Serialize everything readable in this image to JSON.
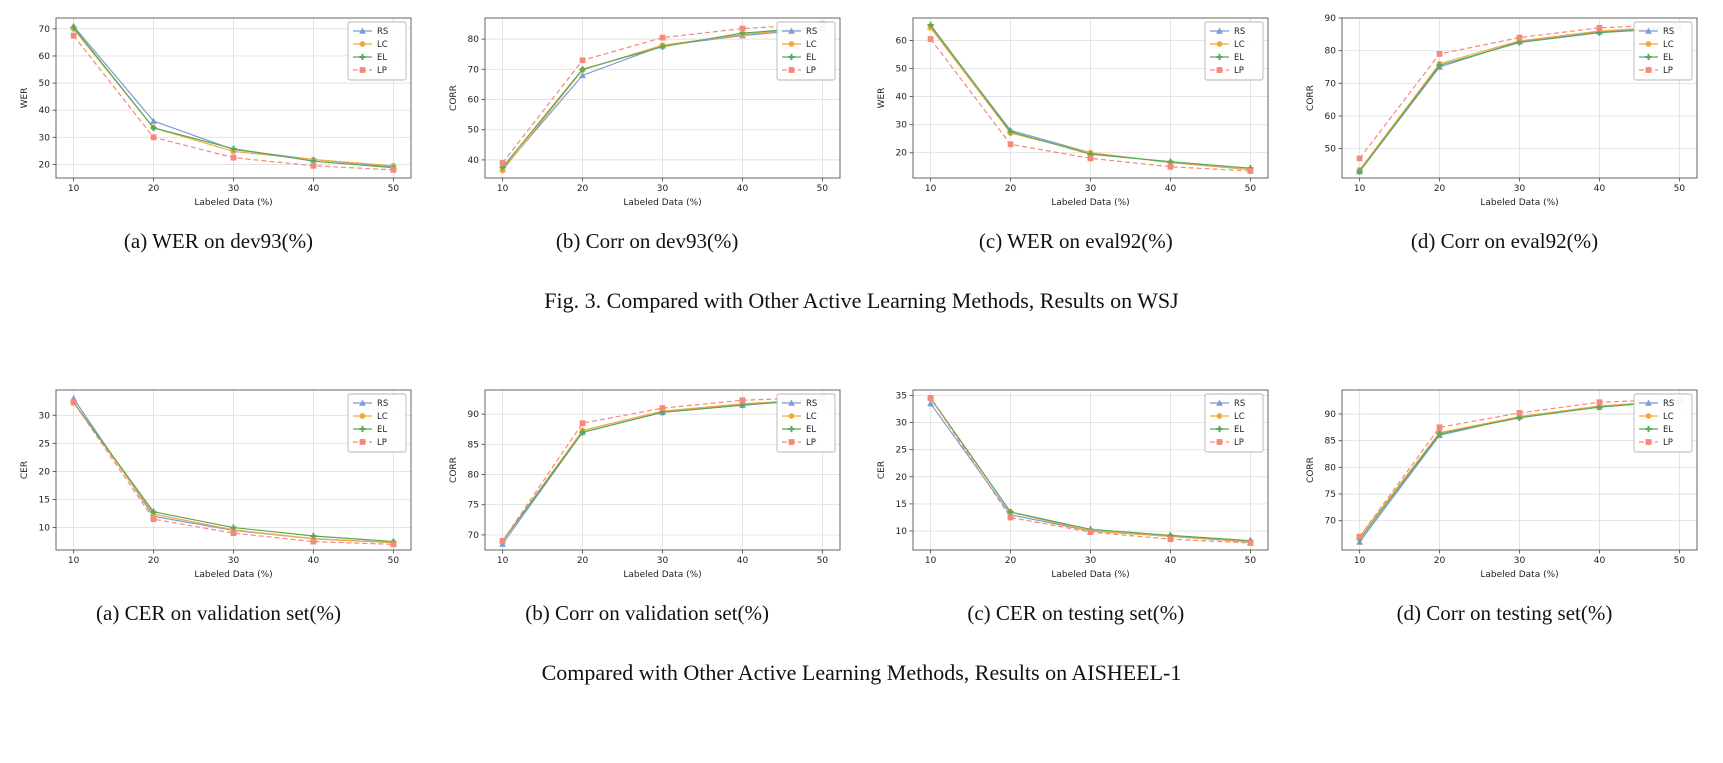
{
  "page": {
    "fig3_caption": "Fig. 3.   Compared with Other Active Learning Methods, Results on WSJ",
    "bottom_caption": "Compared with Other Active Learning Methods, Results on AISHEEL-1"
  },
  "legend": {
    "position": "top-right",
    "entries": [
      {
        "label": "RS",
        "color": "#7b9bd9",
        "marker": "triangle",
        "dashed": false
      },
      {
        "label": "LC",
        "color": "#f5a83a",
        "marker": "circle",
        "dashed": false
      },
      {
        "label": "EL",
        "color": "#58a85a",
        "marker": "plus",
        "dashed": false
      },
      {
        "label": "LP",
        "color": "#f5897a",
        "marker": "square",
        "dashed": true
      }
    ]
  },
  "chart_data": [
    {
      "type": "line",
      "caption": "(a) WER on dev93(%)",
      "xlabel": "Labeled Data (%)",
      "ylabel": "WER",
      "x": [
        10,
        20,
        30,
        40,
        50
      ],
      "xticks": [
        10,
        20,
        30,
        40,
        50
      ],
      "yticks": [
        20,
        30,
        40,
        50,
        60,
        70
      ],
      "ylim": [
        15,
        74
      ],
      "grid": true,
      "series": [
        {
          "name": "RS",
          "values": [
            71.0,
            36.0,
            25.5,
            21.8,
            19.2
          ]
        },
        {
          "name": "LC",
          "values": [
            70.0,
            33.5,
            24.8,
            21.8,
            19.5
          ]
        },
        {
          "name": "EL",
          "values": [
            70.5,
            33.5,
            25.8,
            21.2,
            18.8
          ]
        },
        {
          "name": "LP",
          "values": [
            67.5,
            30.0,
            22.5,
            19.5,
            18.0
          ]
        }
      ]
    },
    {
      "type": "line",
      "caption": "(b) Corr on dev93(%)",
      "xlabel": "Labeled Data (%)",
      "ylabel": "CORR",
      "x": [
        10,
        20,
        30,
        40,
        50
      ],
      "xticks": [
        10,
        20,
        30,
        40,
        50
      ],
      "yticks": [
        40,
        50,
        60,
        70,
        80
      ],
      "ylim": [
        34,
        87
      ],
      "grid": true,
      "series": [
        {
          "name": "RS",
          "values": [
            37.0,
            68.0,
            77.8,
            81.2,
            83.5
          ]
        },
        {
          "name": "LC",
          "values": [
            36.5,
            69.8,
            78.0,
            81.5,
            84.0
          ]
        },
        {
          "name": "EL",
          "values": [
            37.5,
            70.0,
            77.5,
            82.0,
            84.0
          ]
        },
        {
          "name": "LP",
          "values": [
            39.0,
            73.0,
            80.5,
            83.5,
            85.0
          ]
        }
      ]
    },
    {
      "type": "line",
      "caption": "(c) WER on eval92(%)",
      "xlabel": "Labeled Data (%)",
      "ylabel": "WER",
      "x": [
        10,
        20,
        30,
        40,
        50
      ],
      "xticks": [
        10,
        20,
        30,
        40,
        50
      ],
      "yticks": [
        20,
        30,
        40,
        50,
        60
      ],
      "ylim": [
        11,
        68
      ],
      "grid": true,
      "series": [
        {
          "name": "RS",
          "values": [
            65.0,
            28.0,
            20.0,
            16.5,
            14.0
          ]
        },
        {
          "name": "LC",
          "values": [
            64.5,
            27.0,
            20.0,
            16.5,
            14.0
          ]
        },
        {
          "name": "EL",
          "values": [
            65.5,
            27.5,
            19.5,
            16.8,
            14.5
          ]
        },
        {
          "name": "LP",
          "values": [
            60.5,
            23.0,
            18.0,
            15.0,
            13.5
          ]
        }
      ]
    },
    {
      "type": "line",
      "caption": "(d) Corr on eval92(%)",
      "xlabel": "Labeled Data (%)",
      "ylabel": "CORR",
      "x": [
        10,
        20,
        30,
        40,
        50
      ],
      "xticks": [
        10,
        20,
        30,
        40,
        50
      ],
      "yticks": [
        50,
        60,
        70,
        80,
        90
      ],
      "ylim": [
        41,
        90
      ],
      "grid": true,
      "series": [
        {
          "name": "RS",
          "values": [
            43.0,
            75.0,
            82.8,
            85.8,
            87.3
          ]
        },
        {
          "name": "LC",
          "values": [
            43.5,
            76.0,
            83.0,
            86.0,
            87.5
          ]
        },
        {
          "name": "EL",
          "values": [
            43.0,
            75.5,
            82.5,
            85.5,
            87.0
          ]
        },
        {
          "name": "LP",
          "values": [
            47.0,
            79.0,
            84.0,
            87.0,
            88.0
          ]
        }
      ]
    },
    {
      "type": "line",
      "caption": "(a) CER on validation set(%)",
      "xlabel": "Labeled Data (%)",
      "ylabel": "CER",
      "x": [
        10,
        20,
        30,
        40,
        50
      ],
      "xticks": [
        10,
        20,
        30,
        40,
        50
      ],
      "yticks": [
        10,
        15,
        20,
        25,
        30
      ],
      "ylim": [
        6,
        34.5
      ],
      "grid": true,
      "series": [
        {
          "name": "RS",
          "values": [
            33.0,
            12.0,
            9.5,
            8.0,
            7.3
          ]
        },
        {
          "name": "LC",
          "values": [
            32.3,
            12.4,
            9.6,
            8.0,
            7.3
          ]
        },
        {
          "name": "EL",
          "values": [
            32.3,
            12.8,
            10.0,
            8.5,
            7.5
          ]
        },
        {
          "name": "LP",
          "values": [
            32.3,
            11.5,
            9.0,
            7.5,
            7.0
          ]
        }
      ]
    },
    {
      "type": "line",
      "caption": "(b) Corr on validation set(%)",
      "xlabel": "Labeled Data (%)",
      "ylabel": "CORR",
      "x": [
        10,
        20,
        30,
        40,
        50
      ],
      "xticks": [
        10,
        20,
        30,
        40,
        50
      ],
      "yticks": [
        70,
        75,
        80,
        85,
        90
      ],
      "ylim": [
        67.5,
        94
      ],
      "grid": true,
      "series": [
        {
          "name": "RS",
          "values": [
            68.5,
            87.0,
            90.3,
            91.5,
            92.5
          ]
        },
        {
          "name": "LC",
          "values": [
            69.0,
            87.3,
            90.5,
            91.7,
            92.5
          ]
        },
        {
          "name": "EL",
          "values": [
            69.0,
            87.0,
            90.3,
            91.5,
            92.5
          ]
        },
        {
          "name": "LP",
          "values": [
            69.0,
            88.5,
            91.0,
            92.3,
            92.8
          ]
        }
      ]
    },
    {
      "type": "line",
      "caption": "(c) CER on testing set(%)",
      "xlabel": "Labeled Data (%)",
      "ylabel": "CER",
      "x": [
        10,
        20,
        30,
        40,
        50
      ],
      "xticks": [
        10,
        20,
        30,
        40,
        50
      ],
      "yticks": [
        10,
        15,
        20,
        25,
        30,
        35
      ],
      "ylim": [
        6.5,
        36
      ],
      "grid": true,
      "series": [
        {
          "name": "RS",
          "values": [
            33.5,
            13.0,
            10.0,
            9.0,
            8.0
          ]
        },
        {
          "name": "LC",
          "values": [
            34.5,
            13.5,
            10.0,
            9.0,
            8.0
          ]
        },
        {
          "name": "EL",
          "values": [
            34.5,
            13.5,
            10.3,
            9.2,
            8.2
          ]
        },
        {
          "name": "LP",
          "values": [
            34.5,
            12.5,
            9.8,
            8.5,
            7.8
          ]
        }
      ]
    },
    {
      "type": "line",
      "caption": "(d) Corr on testing set(%)",
      "xlabel": "Labeled Data (%)",
      "ylabel": "CORR",
      "x": [
        10,
        20,
        30,
        40,
        50
      ],
      "xticks": [
        10,
        20,
        30,
        40,
        50
      ],
      "yticks": [
        70,
        75,
        80,
        85,
        90
      ],
      "ylim": [
        64.5,
        94.5
      ],
      "grid": true,
      "series": [
        {
          "name": "RS",
          "values": [
            66.0,
            86.0,
            89.5,
            91.3,
            92.5
          ]
        },
        {
          "name": "LC",
          "values": [
            67.0,
            86.5,
            89.5,
            91.5,
            92.5
          ]
        },
        {
          "name": "EL",
          "values": [
            66.5,
            86.3,
            89.3,
            91.3,
            92.5
          ]
        },
        {
          "name": "LP",
          "values": [
            67.0,
            87.5,
            90.2,
            92.2,
            92.8
          ]
        }
      ]
    }
  ]
}
